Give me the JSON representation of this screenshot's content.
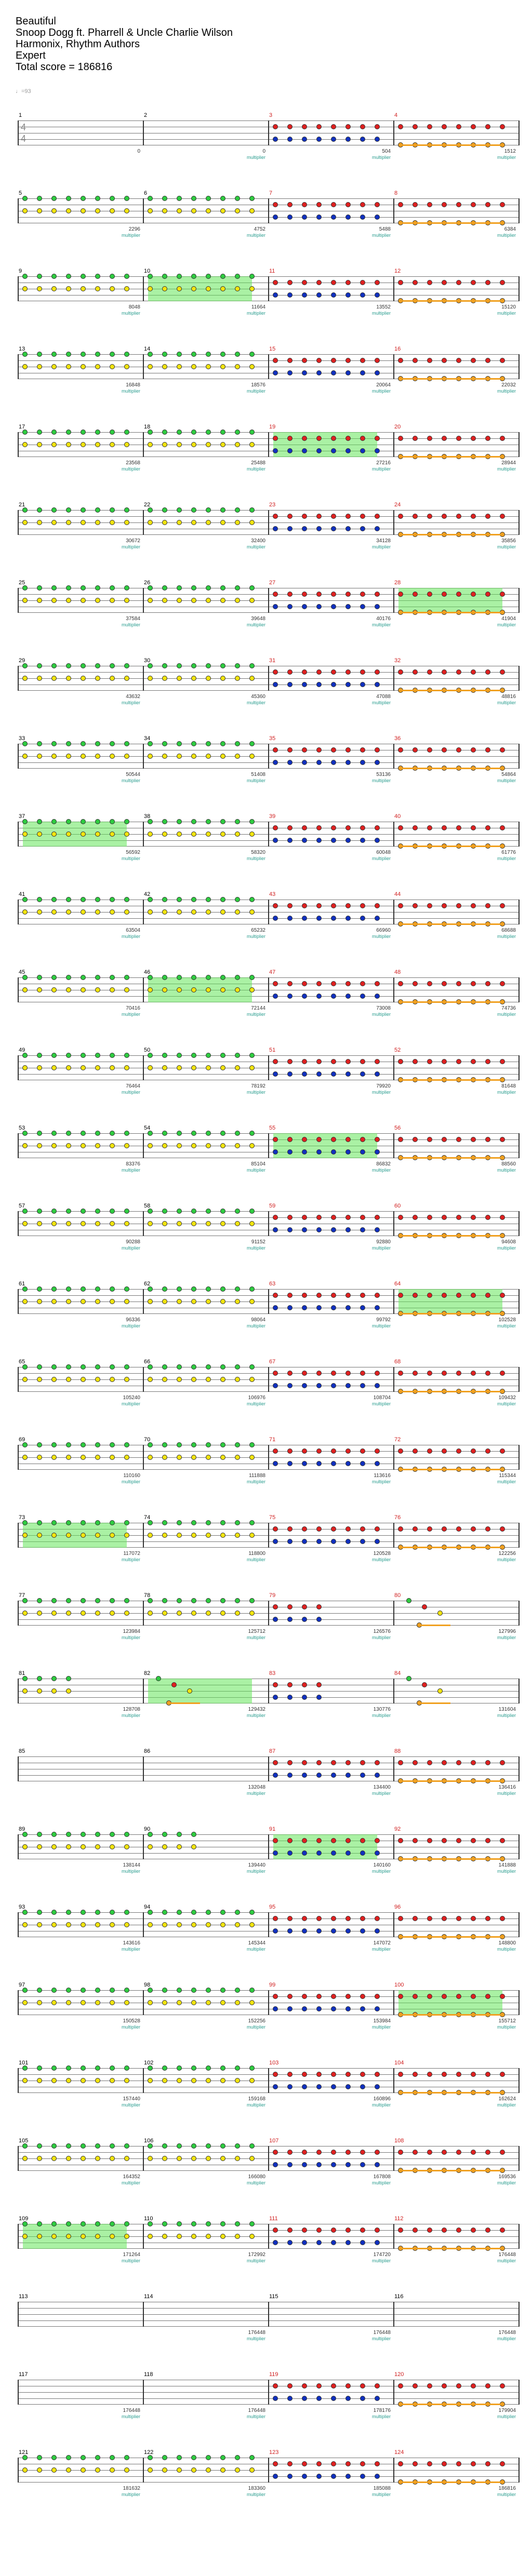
{
  "header": {
    "title": "Beautiful",
    "artist": "Snoop Dogg ft. Pharrell & Uncle Charlie Wilson",
    "charter": "Harmonix, Rhythm Authors",
    "difficulty": "Expert",
    "total_score": "Total score = 186816"
  },
  "tempo": "♩=93",
  "time_signature": {
    "top": "4",
    "bottom": "4"
  },
  "multiplier_label": "multiplier",
  "colors": {
    "green": "#2ecc40",
    "yellow": "#f1e40f",
    "red": "#e02020",
    "blue": "#1030c0",
    "orange": "#f0a020",
    "starpower": "#64e65a"
  },
  "rows": [
    {
      "measures": [
        {
          "n": "1",
          "score": "0",
          "mult": "",
          "pattern": "empty"
        },
        {
          "n": "2",
          "score": "0",
          "mult": "multiplier",
          "pattern": "empty"
        },
        {
          "n": "3",
          "score": "504",
          "mult": "multiplier",
          "pattern": "red-blue"
        },
        {
          "n": "4",
          "score": "1512",
          "mult": "multiplier",
          "pattern": "red-orange"
        }
      ]
    },
    {
      "measures": [
        {
          "n": "5",
          "score": "2296",
          "mult": "multiplier",
          "pattern": "green-yellow"
        },
        {
          "n": "6",
          "score": "4752",
          "mult": "multiplier",
          "pattern": "green-yellow"
        },
        {
          "n": "7",
          "score": "5488",
          "mult": "multiplier",
          "pattern": "red-blue"
        },
        {
          "n": "8",
          "score": "6384",
          "mult": "multiplier",
          "pattern": "red-orange"
        }
      ]
    },
    {
      "measures": [
        {
          "n": "9",
          "score": "8048",
          "mult": "multiplier",
          "pattern": "green-yellow"
        },
        {
          "n": "10",
          "score": "11664",
          "mult": "multiplier",
          "pattern": "green-yellow",
          "sp": true
        },
        {
          "n": "11",
          "score": "13552",
          "mult": "multiplier",
          "pattern": "red-blue"
        },
        {
          "n": "12",
          "score": "15120",
          "mult": "multiplier",
          "pattern": "red-orange"
        }
      ]
    },
    {
      "measures": [
        {
          "n": "13",
          "score": "16848",
          "mult": "multiplier",
          "pattern": "green-yellow"
        },
        {
          "n": "14",
          "score": "18576",
          "mult": "multiplier",
          "pattern": "green-yellow"
        },
        {
          "n": "15",
          "score": "20064",
          "mult": "multiplier",
          "pattern": "red-blue"
        },
        {
          "n": "16",
          "score": "22032",
          "mult": "multiplier",
          "pattern": "red-orange"
        }
      ]
    },
    {
      "measures": [
        {
          "n": "17",
          "score": "23568",
          "mult": "multiplier",
          "pattern": "green-yellow"
        },
        {
          "n": "18",
          "score": "25488",
          "mult": "multiplier",
          "pattern": "green-yellow"
        },
        {
          "n": "19",
          "score": "27216",
          "mult": "multiplier",
          "pattern": "red-blue",
          "sp": true
        },
        {
          "n": "20",
          "score": "28944",
          "mult": "multiplier",
          "pattern": "red-orange"
        }
      ]
    },
    {
      "measures": [
        {
          "n": "21",
          "score": "30672",
          "mult": "multiplier",
          "pattern": "green-yellow"
        },
        {
          "n": "22",
          "score": "32400",
          "mult": "multiplier",
          "pattern": "green-yellow"
        },
        {
          "n": "23",
          "score": "34128",
          "mult": "multiplier",
          "pattern": "red-blue"
        },
        {
          "n": "24",
          "score": "35856",
          "mult": "multiplier",
          "pattern": "red-orange"
        }
      ]
    },
    {
      "measures": [
        {
          "n": "25",
          "score": "37584",
          "mult": "multiplier",
          "pattern": "green-yellow"
        },
        {
          "n": "26",
          "score": "39648",
          "mult": "multiplier",
          "pattern": "green-yellow"
        },
        {
          "n": "27",
          "score": "40176",
          "mult": "multiplier",
          "pattern": "red-blue"
        },
        {
          "n": "28",
          "score": "41904",
          "mult": "multiplier",
          "pattern": "red-orange",
          "sp": true
        }
      ]
    },
    {
      "measures": [
        {
          "n": "29",
          "score": "43632",
          "mult": "multiplier",
          "pattern": "green-yellow"
        },
        {
          "n": "30",
          "score": "45360",
          "mult": "multiplier",
          "pattern": "green-yellow"
        },
        {
          "n": "31",
          "score": "47088",
          "mult": "multiplier",
          "pattern": "red-blue"
        },
        {
          "n": "32",
          "score": "48816",
          "mult": "multiplier",
          "pattern": "red-orange"
        }
      ]
    },
    {
      "measures": [
        {
          "n": "33",
          "score": "50544",
          "mult": "multiplier",
          "pattern": "green-yellow"
        },
        {
          "n": "34",
          "score": "51408",
          "mult": "multiplier",
          "pattern": "green-yellow"
        },
        {
          "n": "35",
          "score": "53136",
          "mult": "multiplier",
          "pattern": "red-blue"
        },
        {
          "n": "36",
          "score": "54864",
          "mult": "multiplier",
          "pattern": "red-orange"
        }
      ]
    },
    {
      "measures": [
        {
          "n": "37",
          "score": "56592",
          "mult": "multiplier",
          "pattern": "green-yellow",
          "sp": true
        },
        {
          "n": "38",
          "score": "58320",
          "mult": "multiplier",
          "pattern": "green-yellow"
        },
        {
          "n": "39",
          "score": "60048",
          "mult": "multiplier",
          "pattern": "red-blue"
        },
        {
          "n": "40",
          "score": "61776",
          "mult": "multiplier",
          "pattern": "red-orange"
        }
      ]
    },
    {
      "measures": [
        {
          "n": "41",
          "score": "63504",
          "mult": "multiplier",
          "pattern": "green-yellow"
        },
        {
          "n": "42",
          "score": "65232",
          "mult": "multiplier",
          "pattern": "green-yellow"
        },
        {
          "n": "43",
          "score": "66960",
          "mult": "multiplier",
          "pattern": "red-blue"
        },
        {
          "n": "44",
          "score": "68688",
          "mult": "multiplier",
          "pattern": "red-orange"
        }
      ]
    },
    {
      "measures": [
        {
          "n": "45",
          "score": "70416",
          "mult": "multiplier",
          "pattern": "green-yellow"
        },
        {
          "n": "46",
          "score": "72144",
          "mult": "multiplier",
          "pattern": "green-yellow",
          "sp": true
        },
        {
          "n": "47",
          "score": "73008",
          "mult": "multiplier",
          "pattern": "red-blue"
        },
        {
          "n": "48",
          "score": "74736",
          "mult": "multiplier",
          "pattern": "red-orange"
        }
      ]
    },
    {
      "measures": [
        {
          "n": "49",
          "score": "76464",
          "mult": "multiplier",
          "pattern": "green-yellow"
        },
        {
          "n": "50",
          "score": "78192",
          "mult": "multiplier",
          "pattern": "green-yellow"
        },
        {
          "n": "51",
          "score": "79920",
          "mult": "multiplier",
          "pattern": "red-blue"
        },
        {
          "n": "52",
          "score": "81648",
          "mult": "multiplier",
          "pattern": "red-orange"
        }
      ]
    },
    {
      "measures": [
        {
          "n": "53",
          "score": "83376",
          "mult": "multiplier",
          "pattern": "green-yellow"
        },
        {
          "n": "54",
          "score": "85104",
          "mult": "multiplier",
          "pattern": "green-yellow"
        },
        {
          "n": "55",
          "score": "86832",
          "mult": "multiplier",
          "pattern": "red-blue",
          "sp": true
        },
        {
          "n": "56",
          "score": "88560",
          "mult": "multiplier",
          "pattern": "red-orange"
        }
      ]
    },
    {
      "measures": [
        {
          "n": "57",
          "score": "90288",
          "mult": "multiplier",
          "pattern": "green-yellow"
        },
        {
          "n": "58",
          "score": "91152",
          "mult": "multiplier",
          "pattern": "green-yellow"
        },
        {
          "n": "59",
          "score": "92880",
          "mult": "multiplier",
          "pattern": "red-blue"
        },
        {
          "n": "60",
          "score": "94608",
          "mult": "multiplier",
          "pattern": "red-orange"
        }
      ]
    },
    {
      "measures": [
        {
          "n": "61",
          "score": "96336",
          "mult": "multiplier",
          "pattern": "green-yellow"
        },
        {
          "n": "62",
          "score": "98064",
          "mult": "multiplier",
          "pattern": "green-yellow"
        },
        {
          "n": "63",
          "score": "99792",
          "mult": "multiplier",
          "pattern": "red-blue"
        },
        {
          "n": "64",
          "score": "102528",
          "mult": "multiplier",
          "pattern": "red-orange",
          "sp": true
        }
      ]
    },
    {
      "measures": [
        {
          "n": "65",
          "score": "105240",
          "mult": "multiplier",
          "pattern": "green-yellow"
        },
        {
          "n": "66",
          "score": "106976",
          "mult": "multiplier",
          "pattern": "green-yellow"
        },
        {
          "n": "67",
          "score": "108704",
          "mult": "multiplier",
          "pattern": "red-blue"
        },
        {
          "n": "68",
          "score": "109432",
          "mult": "multiplier",
          "pattern": "red-orange"
        }
      ]
    },
    {
      "measures": [
        {
          "n": "69",
          "score": "110160",
          "mult": "multiplier",
          "pattern": "green-yellow"
        },
        {
          "n": "70",
          "score": "111888",
          "mult": "multiplier",
          "pattern": "green-yellow"
        },
        {
          "n": "71",
          "score": "113616",
          "mult": "multiplier",
          "pattern": "red-blue"
        },
        {
          "n": "72",
          "score": "115344",
          "mult": "multiplier",
          "pattern": "red-orange"
        }
      ]
    },
    {
      "measures": [
        {
          "n": "73",
          "score": "117072",
          "mult": "multiplier",
          "pattern": "green-yellow",
          "sp": true
        },
        {
          "n": "74",
          "score": "118800",
          "mult": "multiplier",
          "pattern": "green-yellow"
        },
        {
          "n": "75",
          "score": "120528",
          "mult": "multiplier",
          "pattern": "red-blue"
        },
        {
          "n": "76",
          "score": "122256",
          "mult": "multiplier",
          "pattern": "red-orange"
        }
      ]
    },
    {
      "measures": [
        {
          "n": "77",
          "score": "123984",
          "mult": "multiplier",
          "pattern": "green-yellow"
        },
        {
          "n": "78",
          "score": "125712",
          "mult": "multiplier",
          "pattern": "green-yellow"
        },
        {
          "n": "79",
          "score": "126576",
          "mult": "multiplier",
          "pattern": "red-blue-sparse"
        },
        {
          "n": "80",
          "score": "127996",
          "mult": "multiplier",
          "pattern": "chord"
        }
      ]
    },
    {
      "measures": [
        {
          "n": "81",
          "score": "128708",
          "mult": "multiplier",
          "pattern": "green-yellow-sparse"
        },
        {
          "n": "82",
          "score": "129432",
          "mult": "multiplier",
          "pattern": "chord-sp",
          "sp": true
        },
        {
          "n": "83",
          "score": "130776",
          "mult": "multiplier",
          "pattern": "red-blue-sparse"
        },
        {
          "n": "84",
          "score": "131604",
          "mult": "multiplier",
          "pattern": "chord"
        }
      ]
    },
    {
      "measures": [
        {
          "n": "85",
          "score": "",
          "mult": "",
          "pattern": "empty"
        },
        {
          "n": "86",
          "score": "132048",
          "mult": "multiplier",
          "pattern": "empty"
        },
        {
          "n": "87",
          "score": "134400",
          "mult": "multiplier",
          "pattern": "red-blue"
        },
        {
          "n": "88",
          "score": "136416",
          "mult": "multiplier",
          "pattern": "red-orange"
        }
      ]
    },
    {
      "measures": [
        {
          "n": "89",
          "score": "138144",
          "mult": "multiplier",
          "pattern": "green-yellow"
        },
        {
          "n": "90",
          "score": "139440",
          "mult": "multiplier",
          "pattern": "green-yellow-half"
        },
        {
          "n": "91",
          "score": "140160",
          "mult": "multiplier",
          "pattern": "red-blue",
          "sp": true
        },
        {
          "n": "92",
          "score": "141888",
          "mult": "multiplier",
          "pattern": "red-orange"
        }
      ]
    },
    {
      "measures": [
        {
          "n": "93",
          "score": "143616",
          "mult": "multiplier",
          "pattern": "green-yellow"
        },
        {
          "n": "94",
          "score": "145344",
          "mult": "multiplier",
          "pattern": "green-yellow"
        },
        {
          "n": "95",
          "score": "147072",
          "mult": "multiplier",
          "pattern": "red-blue"
        },
        {
          "n": "96",
          "score": "148800",
          "mult": "multiplier",
          "pattern": "red-orange"
        }
      ]
    },
    {
      "measures": [
        {
          "n": "97",
          "score": "150528",
          "mult": "multiplier",
          "pattern": "green-yellow"
        },
        {
          "n": "98",
          "score": "152256",
          "mult": "multiplier",
          "pattern": "green-yellow"
        },
        {
          "n": "99",
          "score": "153984",
          "mult": "multiplier",
          "pattern": "red-blue"
        },
        {
          "n": "100",
          "score": "155712",
          "mult": "multiplier",
          "pattern": "red-orange",
          "sp": true
        }
      ]
    },
    {
      "measures": [
        {
          "n": "101",
          "score": "157440",
          "mult": "multiplier",
          "pattern": "green-yellow"
        },
        {
          "n": "102",
          "score": "159168",
          "mult": "multiplier",
          "pattern": "green-yellow"
        },
        {
          "n": "103",
          "score": "160896",
          "mult": "multiplier",
          "pattern": "red-blue"
        },
        {
          "n": "104",
          "score": "162624",
          "mult": "multiplier",
          "pattern": "red-orange"
        }
      ]
    },
    {
      "measures": [
        {
          "n": "105",
          "score": "164352",
          "mult": "multiplier",
          "pattern": "green-yellow"
        },
        {
          "n": "106",
          "score": "166080",
          "mult": "multiplier",
          "pattern": "green-yellow"
        },
        {
          "n": "107",
          "score": "167808",
          "mult": "multiplier",
          "pattern": "red-blue"
        },
        {
          "n": "108",
          "score": "169536",
          "mult": "multiplier",
          "pattern": "red-orange"
        }
      ]
    },
    {
      "measures": [
        {
          "n": "109",
          "score": "171264",
          "mult": "multiplier",
          "pattern": "green-yellow",
          "sp": true
        },
        {
          "n": "110",
          "score": "172992",
          "mult": "multiplier",
          "pattern": "green-yellow"
        },
        {
          "n": "111",
          "score": "174720",
          "mult": "multiplier",
          "pattern": "red-blue"
        },
        {
          "n": "112",
          "score": "176448",
          "mult": "multiplier",
          "pattern": "red-orange"
        }
      ]
    },
    {
      "measures": [
        {
          "n": "113",
          "score": "",
          "mult": "",
          "pattern": "empty"
        },
        {
          "n": "114",
          "score": "176448",
          "mult": "multiplier",
          "pattern": "empty"
        },
        {
          "n": "115",
          "score": "176448",
          "mult": "multiplier",
          "pattern": "empty"
        },
        {
          "n": "116",
          "score": "176448",
          "mult": "multiplier",
          "pattern": "empty"
        }
      ]
    },
    {
      "measures": [
        {
          "n": "117",
          "score": "176448",
          "mult": "multiplier",
          "pattern": "empty"
        },
        {
          "n": "118",
          "score": "176448",
          "mult": "multiplier",
          "pattern": "empty"
        },
        {
          "n": "119",
          "score": "178176",
          "mult": "multiplier",
          "pattern": "red-blue"
        },
        {
          "n": "120",
          "score": "179904",
          "mult": "multiplier",
          "pattern": "red-orange"
        }
      ]
    },
    {
      "measures": [
        {
          "n": "121",
          "score": "181632",
          "mult": "multiplier",
          "pattern": "green-yellow"
        },
        {
          "n": "122",
          "score": "183360",
          "mult": "multiplier",
          "pattern": "green-yellow"
        },
        {
          "n": "123",
          "score": "185088",
          "mult": "multiplier",
          "pattern": "red-blue"
        },
        {
          "n": "124",
          "score": "186816",
          "mult": "multiplier",
          "pattern": "red-orange"
        }
      ]
    }
  ]
}
